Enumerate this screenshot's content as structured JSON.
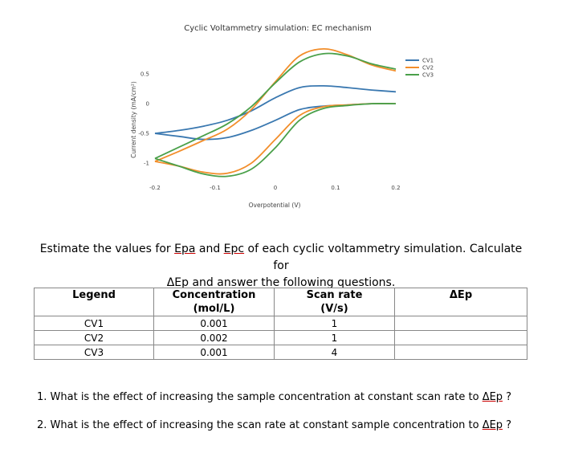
{
  "chart_data": {
    "type": "line",
    "title": "Cyclic Voltammetry simulation: EC mechanism",
    "xlabel": "Overpotential (V)",
    "ylabel": "Current density (mA/cm²)",
    "xlim": [
      -0.2,
      0.2
    ],
    "ylim": [
      -1.2,
      1.0
    ],
    "xticks": [
      -0.2,
      -0.1,
      0,
      0.1,
      0.2
    ],
    "xtick_labels": [
      "-0.2",
      "-0.1",
      "0",
      "0.1",
      "0.2"
    ],
    "yticks": [
      0.5,
      0,
      -0.5,
      -1
    ],
    "ytick_labels": [
      "0.5",
      "0",
      "-0.5",
      "-1"
    ],
    "grid": false,
    "legend_position": "top-right",
    "series": [
      {
        "name": "CV1",
        "color": "#3a78b0",
        "x": [
          -0.2,
          -0.16,
          -0.12,
          -0.08,
          -0.04,
          0,
          0.04,
          0.08,
          0.12,
          0.16,
          0.2,
          0.2,
          0.16,
          0.12,
          0.08,
          0.04,
          0,
          -0.04,
          -0.08,
          -0.12,
          -0.16,
          -0.2
        ],
        "y": [
          -0.5,
          -0.45,
          -0.38,
          -0.28,
          -0.12,
          0.1,
          0.27,
          0.3,
          0.27,
          0.23,
          0.2,
          0.0,
          0.0,
          -0.02,
          -0.04,
          -0.1,
          -0.28,
          -0.45,
          -0.57,
          -0.6,
          -0.55,
          -0.5
        ]
      },
      {
        "name": "CV2",
        "color": "#f28e2b",
        "x": [
          -0.2,
          -0.16,
          -0.12,
          -0.08,
          -0.04,
          0,
          0.04,
          0.08,
          0.12,
          0.16,
          0.2,
          0.2,
          0.16,
          0.12,
          0.08,
          0.04,
          0,
          -0.04,
          -0.08,
          -0.12,
          -0.16,
          -0.2
        ],
        "y": [
          -0.97,
          -0.8,
          -0.62,
          -0.43,
          -0.1,
          0.37,
          0.8,
          0.92,
          0.82,
          0.65,
          0.55,
          0.0,
          0.0,
          -0.02,
          -0.05,
          -0.2,
          -0.6,
          -1.0,
          -1.17,
          -1.15,
          -1.05,
          -0.97
        ]
      },
      {
        "name": "CV3",
        "color": "#4aa04a",
        "x": [
          -0.2,
          -0.16,
          -0.12,
          -0.08,
          -0.04,
          0,
          0.04,
          0.08,
          0.12,
          0.16,
          0.2,
          0.2,
          0.16,
          0.12,
          0.08,
          0.04,
          0,
          -0.04,
          -0.08,
          -0.12,
          -0.16,
          -0.2
        ],
        "y": [
          -0.92,
          -0.73,
          -0.54,
          -0.34,
          -0.05,
          0.35,
          0.7,
          0.84,
          0.8,
          0.67,
          0.58,
          0.0,
          0.0,
          -0.03,
          -0.08,
          -0.28,
          -0.74,
          -1.1,
          -1.22,
          -1.18,
          -1.05,
          -0.92
        ]
      }
    ]
  },
  "instructions": {
    "line1_before": "Estimate the values for ",
    "epa": "Epa",
    "line1_mid": " and ",
    "epc": "Epc",
    "line1_after": " of each cyclic voltammetry simulation. Calculate for",
    "line2_symbol": "ΔEp",
    "line2_after": " and answer the following questions."
  },
  "table": {
    "headers": {
      "legend": "Legend",
      "concentration_line1": "Concentration",
      "concentration_line2": "(mol/L)",
      "scan_line1": "Scan rate",
      "scan_line2": "(V/s)",
      "delta": "ΔEp"
    },
    "rows": [
      {
        "legend": "CV1",
        "concentration": "0.001",
        "scan_rate": "1",
        "delta": ""
      },
      {
        "legend": "CV2",
        "concentration": "0.002",
        "scan_rate": "1",
        "delta": ""
      },
      {
        "legend": "CV3",
        "concentration": "0.001",
        "scan_rate": "4",
        "delta": ""
      }
    ]
  },
  "questions": [
    {
      "prefix": "1. What is the effect of increasing the sample concentration at constant scan rate to ",
      "symbol": "ΔEp",
      "suffix": " ?"
    },
    {
      "prefix": "2. What is the effect of increasing the scan rate at constant sample concentration to ",
      "symbol": "ΔEp",
      "suffix": " ?"
    }
  ]
}
